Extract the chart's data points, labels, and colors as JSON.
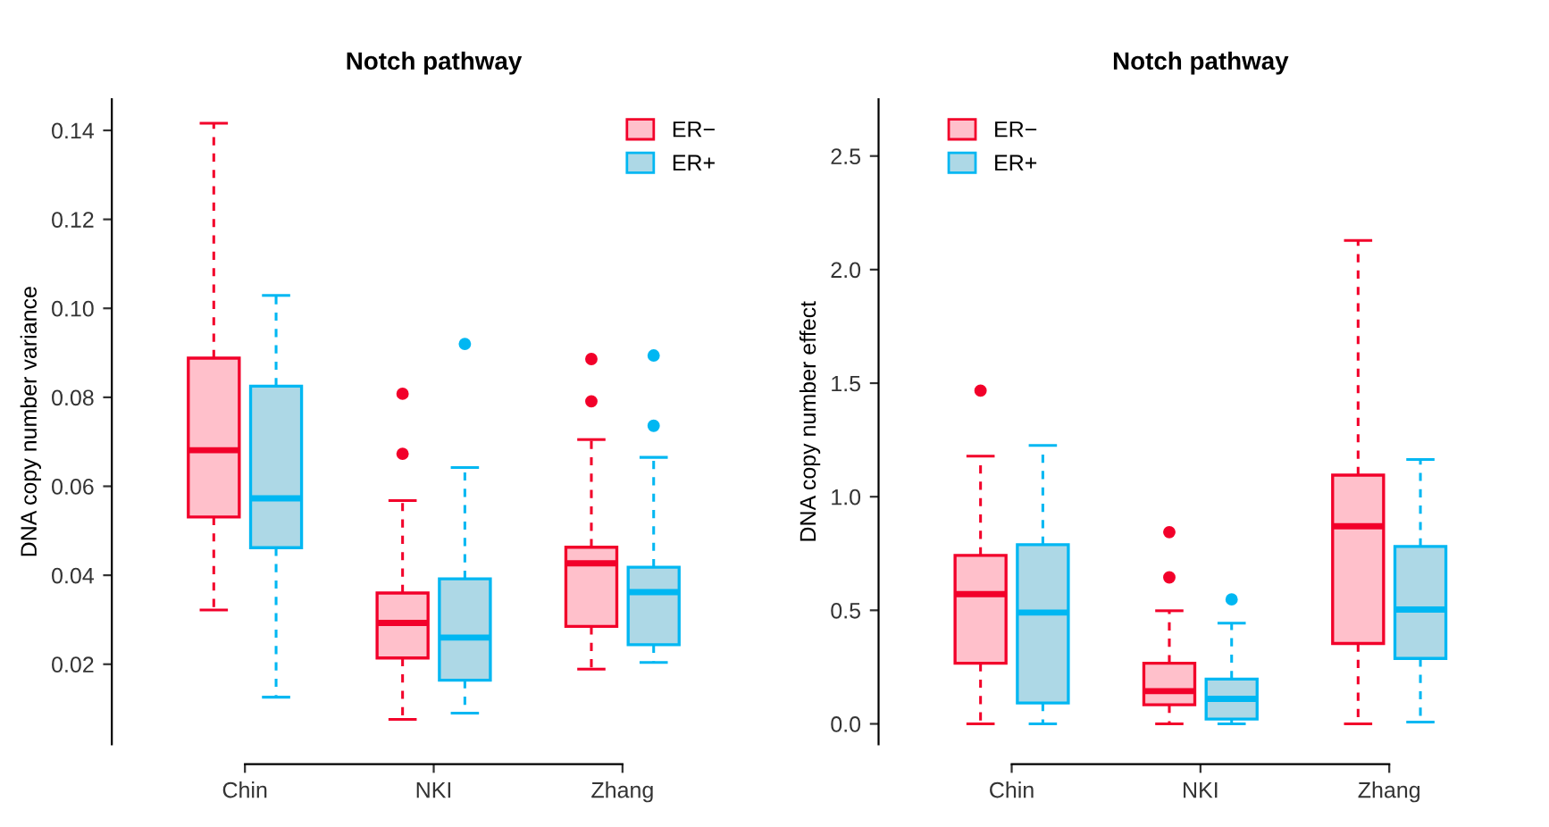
{
  "chart_data": [
    {
      "type": "box",
      "title": "Notch pathway",
      "ylabel": "DNA copy number variance",
      "categories": [
        "Chin",
        "NKI",
        "Zhang"
      ],
      "ylim": [
        0.002,
        0.147
      ],
      "yticks": [
        {
          "value": 0.02,
          "label": "0.02"
        },
        {
          "value": 0.04,
          "label": "0.04"
        },
        {
          "value": 0.06,
          "label": "0.06"
        },
        {
          "value": 0.08,
          "label": "0.08"
        },
        {
          "value": 0.1,
          "label": "0.10"
        },
        {
          "value": 0.12,
          "label": "0.12"
        },
        {
          "value": 0.14,
          "label": "0.14"
        }
      ],
      "legend": "top right",
      "grid": false,
      "series": [
        {
          "name": "ER−",
          "color": "#ffc0cb",
          "boxes": [
            {
              "low": 0.0322,
              "q1": 0.0531,
              "median": 0.0681,
              "q3": 0.0888,
              "high": 0.1416
            },
            {
              "low": 0.0076,
              "q1": 0.0214,
              "median": 0.0293,
              "q3": 0.036,
              "high": 0.0568,
              "outliers": [
                0.0673,
                0.0808
              ]
            },
            {
              "low": 0.0189,
              "q1": 0.0285,
              "median": 0.0427,
              "q3": 0.0463,
              "high": 0.0705,
              "outliers": [
                0.0791,
                0.0886
              ]
            }
          ]
        },
        {
          "name": "ER+",
          "color": "#add8e6",
          "boxes": [
            {
              "low": 0.0126,
              "q1": 0.0462,
              "median": 0.0573,
              "q3": 0.0825,
              "high": 0.1029
            },
            {
              "low": 0.009,
              "q1": 0.0164,
              "median": 0.026,
              "q3": 0.0392,
              "high": 0.0642,
              "outliers": [
                0.092
              ]
            },
            {
              "low": 0.0204,
              "q1": 0.0244,
              "median": 0.0362,
              "q3": 0.0418,
              "high": 0.0665,
              "outliers": [
                0.0736,
                0.0894
              ]
            }
          ]
        }
      ]
    },
    {
      "type": "box",
      "title": "Notch pathway",
      "ylabel": "DNA copy number effect",
      "categories": [
        "Chin",
        "NKI",
        "Zhang"
      ],
      "ylim": [
        -0.09,
        2.75
      ],
      "yticks": [
        {
          "value": 0,
          "label": "0.0"
        },
        {
          "value": 0.5,
          "label": "0.5"
        },
        {
          "value": 1,
          "label": "1.0"
        },
        {
          "value": 1.5,
          "label": "1.5"
        },
        {
          "value": 2,
          "label": "2.0"
        },
        {
          "value": 2.5,
          "label": "2.5"
        }
      ],
      "legend": "top left",
      "grid": false,
      "series": [
        {
          "name": "ER−",
          "color": "#ffc0cb",
          "boxes": [
            {
              "low": 0,
              "q1": 0.267,
              "median": 0.571,
              "q3": 0.742,
              "high": 1.179,
              "outliers": [
                1.467
              ]
            },
            {
              "low": 0,
              "q1": 0.084,
              "median": 0.144,
              "q3": 0.267,
              "high": 0.498,
              "outliers": [
                0.645,
                0.844
              ]
            },
            {
              "low": 0,
              "q1": 0.354,
              "median": 0.87,
              "q3": 1.095,
              "high": 2.128
            }
          ]
        },
        {
          "name": "ER+",
          "color": "#add8e6",
          "boxes": [
            {
              "low": 0,
              "q1": 0.092,
              "median": 0.49,
              "q3": 0.789,
              "high": 1.226
            },
            {
              "low": 0,
              "q1": 0.021,
              "median": 0.11,
              "q3": 0.197,
              "high": 0.443,
              "outliers": [
                0.548
              ]
            },
            {
              "low": 0.008,
              "q1": 0.288,
              "median": 0.503,
              "q3": 0.781,
              "high": 1.164
            }
          ]
        }
      ]
    }
  ]
}
